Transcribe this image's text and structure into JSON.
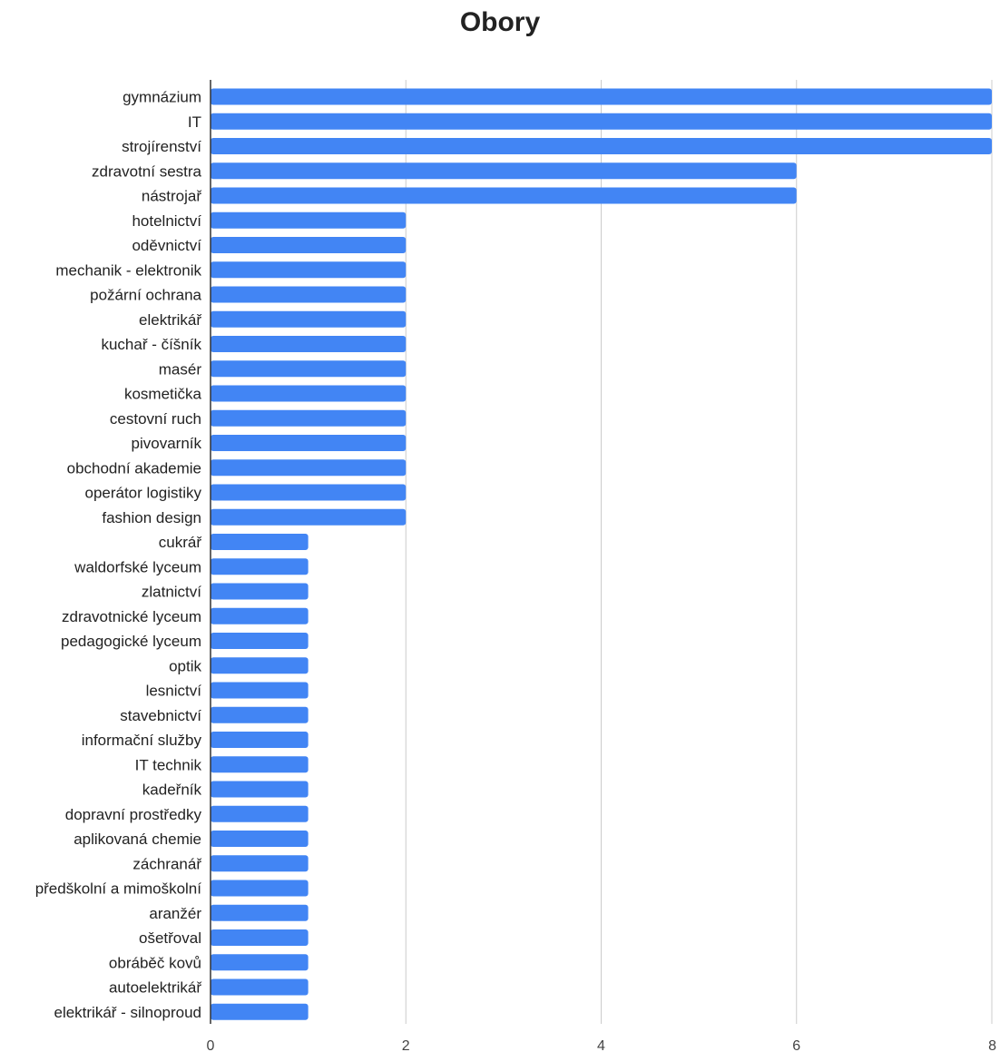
{
  "chart_data": {
    "type": "bar",
    "orientation": "horizontal",
    "title": "Obory",
    "xlabel": "",
    "ylabel": "",
    "xlim": [
      0,
      8
    ],
    "x_ticks": [
      0,
      2,
      4,
      6,
      8
    ],
    "grid": true,
    "bar_color": "#4285f4",
    "categories": [
      "gymnázium",
      "IT",
      "strojírenství",
      "zdravotní sestra",
      "nástrojař",
      "hotelnictví",
      "oděvnictví",
      "mechanik - elektronik",
      "požární ochrana",
      "elektrikář",
      "kuchař - číšník",
      "masér",
      "kosmetička",
      "cestovní ruch",
      "pivovarník",
      "obchodní akademie",
      "operátor logistiky",
      "fashion design",
      "cukrář",
      "waldorfské lyceum",
      "zlatnictví",
      "zdravotnické lyceum",
      "pedagogické lyceum",
      "optik",
      "lesnictví",
      "stavebnictví",
      "informační služby",
      "IT technik",
      "kadeřník",
      "dopravní prostředky",
      "aplikovaná chemie",
      "záchranář",
      "předškolní a mimoškolní",
      "aranžér",
      "ošetřoval",
      "obráběč kovů",
      "autoelektrikář",
      "elektrikář - silnoproud"
    ],
    "values": [
      8,
      8,
      8,
      6,
      6,
      2,
      2,
      2,
      2,
      2,
      2,
      2,
      2,
      2,
      2,
      2,
      2,
      2,
      1,
      1,
      1,
      1,
      1,
      1,
      1,
      1,
      1,
      1,
      1,
      1,
      1,
      1,
      1,
      1,
      1,
      1,
      1,
      1
    ]
  }
}
